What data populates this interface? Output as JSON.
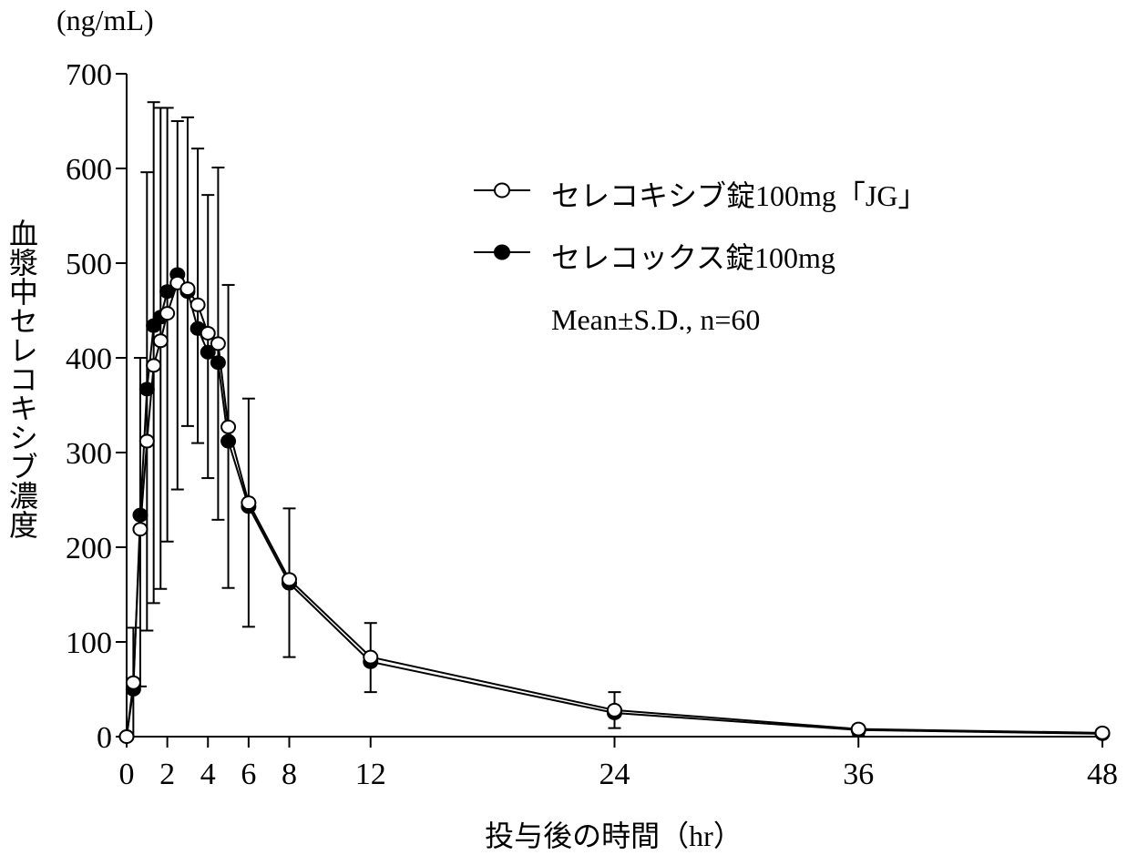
{
  "chart_data": {
    "type": "line",
    "title": "",
    "ylabel": "血漿中セレコキシブ濃度",
    "yunit": "(ng/mL)",
    "xlabel": "投与後の時間（hr）",
    "xlim": [
      0,
      48
    ],
    "ylim": [
      0,
      700
    ],
    "xticks": [
      0,
      2,
      4,
      6,
      8,
      12,
      24,
      36,
      48
    ],
    "yticks": [
      0,
      100,
      200,
      300,
      400,
      500,
      600,
      700
    ],
    "grid": false,
    "legend_placement": "top-right",
    "x": [
      0,
      0.33,
      0.67,
      1,
      1.33,
      1.67,
      2,
      2.5,
      3,
      3.5,
      4,
      4.5,
      5,
      6,
      8,
      12,
      24,
      36,
      48
    ],
    "series": [
      {
        "name": "セレコキシブ錠100mg「JG」",
        "marker": "open-circle",
        "values": [
          0,
          57,
          219,
          312,
          392,
          418,
          447,
          479,
          473,
          456,
          426,
          415,
          327,
          247,
          166,
          84,
          28,
          8,
          4
        ]
      },
      {
        "name": "セレコックス錠100mg",
        "marker": "filled-circle",
        "values": [
          0,
          50,
          234,
          367,
          434,
          443,
          470,
          488,
          470,
          431,
          406,
          395,
          312,
          243,
          162,
          79,
          25,
          7,
          3
        ]
      }
    ],
    "error_bars": {
      "upper": [
        null,
        115,
        400,
        596,
        670,
        664,
        664,
        650,
        654,
        621,
        572,
        601,
        477,
        357,
        241,
        120,
        47,
        12,
        null
      ],
      "lower": [
        null,
        0,
        53,
        112,
        141,
        156,
        206,
        261,
        328,
        310,
        273,
        229,
        157,
        116,
        84,
        47,
        9,
        2,
        null
      ]
    },
    "annotation": "Mean±S.D., n=60"
  }
}
